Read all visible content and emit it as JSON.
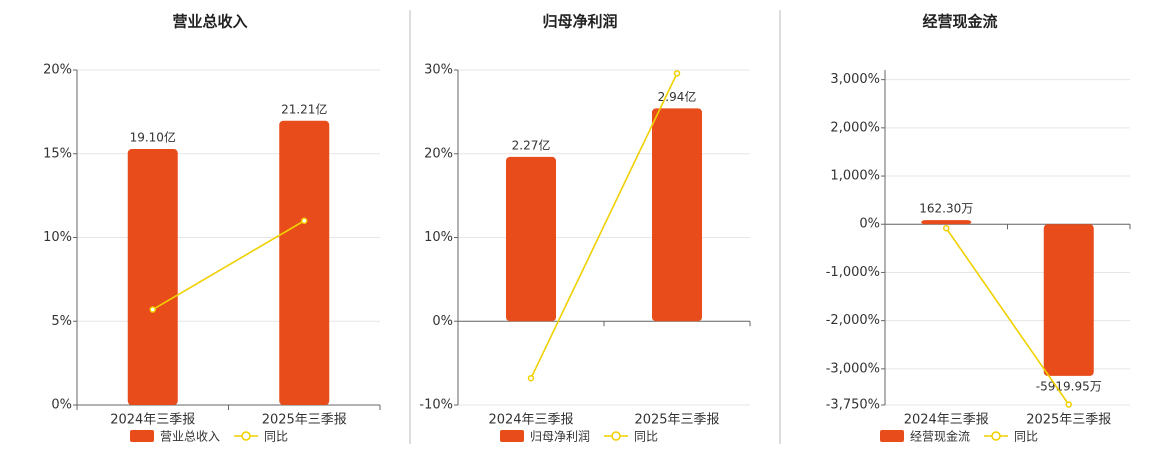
{
  "chart_data": [
    {
      "type": "bar",
      "title": "营业总收入",
      "categories": [
        "2024年三季报",
        "2025年三季报"
      ],
      "series": [
        {
          "name": "营业总收入",
          "type": "bar",
          "axis": "y2",
          "color": "#e84c1a",
          "values": [
            19.1,
            21.21
          ],
          "value_labels": [
            "19.10亿",
            "21.21亿"
          ]
        },
        {
          "name": "同比",
          "type": "line",
          "color": "#f0d000",
          "values": [
            5.7,
            11.0
          ]
        }
      ],
      "ylim": [
        0,
        20
      ],
      "yticks": [
        {
          "value": 0,
          "label": "0%"
        },
        {
          "value": 5,
          "label": "5%"
        },
        {
          "value": 10,
          "label": "10%"
        },
        {
          "value": 15,
          "label": "15%"
        },
        {
          "value": 20,
          "label": "20%"
        }
      ],
      "y2lim": [
        0,
        25
      ],
      "grid": true
    },
    {
      "type": "bar",
      "title": "归母净利润",
      "categories": [
        "2024年三季报",
        "2025年三季报"
      ],
      "series": [
        {
          "name": "归母净利润",
          "type": "bar",
          "axis": "y2",
          "color": "#e84c1a",
          "values": [
            2.27,
            2.94
          ],
          "value_labels": [
            "2.27亿",
            "2.94亿"
          ]
        },
        {
          "name": "同比",
          "type": "line",
          "color": "#f0d000",
          "values": [
            -6.8,
            29.6
          ]
        }
      ],
      "ylim": [
        -10,
        30
      ],
      "yticks": [
        {
          "value": -10,
          "label": "-10%"
        },
        {
          "value": 0,
          "label": "0%"
        },
        {
          "value": 10,
          "label": "10%"
        },
        {
          "value": 20,
          "label": "20%"
        },
        {
          "value": 30,
          "label": "30%"
        }
      ],
      "y2lim": [
        -1.157,
        3.47
      ],
      "grid": true
    },
    {
      "type": "bar",
      "title": "经营现金流",
      "categories": [
        "2024年三季报",
        "2025年三季报"
      ],
      "series": [
        {
          "name": "经营现金流",
          "type": "bar",
          "axis": "y2",
          "color": "#e84c1a",
          "values": [
            162.3,
            -5919.95
          ],
          "value_labels": [
            "162.30万",
            "-5919.95万"
          ]
        },
        {
          "name": "同比",
          "type": "line",
          "color": "#f0d000",
          "values": [
            -83,
            -3740
          ]
        }
      ],
      "ylim": [
        -3750,
        3200
      ],
      "yticks": [
        {
          "value": -3750,
          "label": "-3,750%"
        },
        {
          "value": -3000,
          "label": "-3,000%"
        },
        {
          "value": -2000,
          "label": "-2,000%"
        },
        {
          "value": -1000,
          "label": "-1,000%"
        },
        {
          "value": 0,
          "label": "0%"
        },
        {
          "value": 1000,
          "label": "1,000%"
        },
        {
          "value": 2000,
          "label": "2,000%"
        },
        {
          "value": 3000,
          "label": "3,000%"
        }
      ],
      "y2lim": [
        -7057,
        6022
      ],
      "grid": true
    }
  ]
}
